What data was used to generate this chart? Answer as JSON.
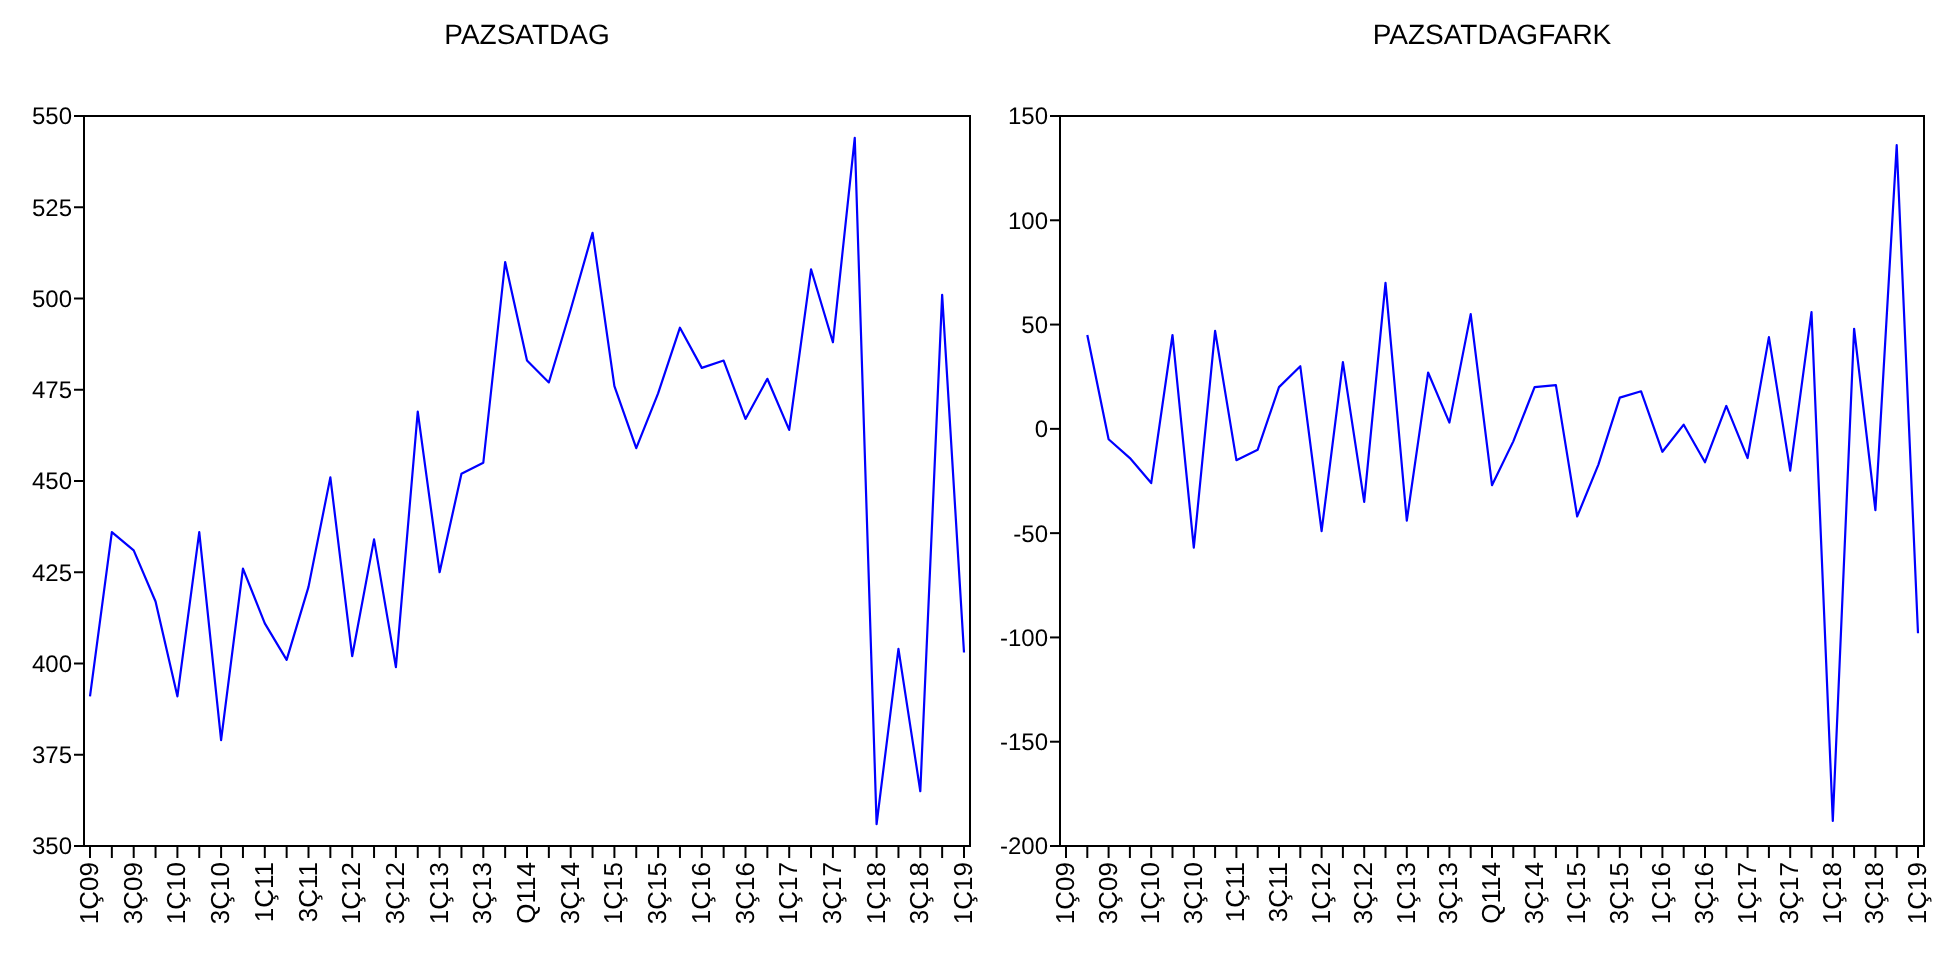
{
  "chart_data": [
    {
      "type": "line",
      "title": "PAZSATDAG",
      "categories": [
        "1Ç09",
        null,
        "3Ç09",
        null,
        "1Ç10",
        null,
        "3Ç10",
        null,
        "1Ç11",
        null,
        "3Ç11",
        null,
        "1Ç12",
        null,
        "3Ç12",
        null,
        "1Ç13",
        null,
        "3Ç13",
        null,
        "Q114",
        null,
        "3Ç14",
        null,
        "1Ç15",
        null,
        "3Ç15",
        null,
        "1Ç16",
        null,
        "3Ç16",
        null,
        "1Ç17",
        null,
        "3Ç17",
        null,
        "1Ç18",
        null,
        "3Ç18",
        null,
        "1Ç19"
      ],
      "series": [
        {
          "color": "#0000ff",
          "values": [
            391,
            436,
            431,
            417,
            391,
            436,
            379,
            426,
            411,
            401,
            421,
            451,
            402,
            434,
            399,
            469,
            425,
            452,
            455,
            510,
            483,
            477,
            497,
            518,
            476,
            459,
            474,
            492,
            481,
            483,
            467,
            478,
            464,
            508,
            488,
            544,
            356,
            404,
            365,
            501,
            403
          ]
        }
      ],
      "ylim": [
        350,
        550
      ],
      "yticks": [
        350,
        375,
        400,
        425,
        450,
        475,
        500,
        525,
        550
      ],
      "grid": false
    },
    {
      "type": "line",
      "title": "PAZSATDAGFARK",
      "categories": [
        "1Ç09",
        null,
        "3Ç09",
        null,
        "1Ç10",
        null,
        "3Ç10",
        null,
        "1Ç11",
        null,
        "3Ç11",
        null,
        "1Ç12",
        null,
        "3Ç12",
        null,
        "1Ç13",
        null,
        "3Ç13",
        null,
        "Q114",
        null,
        "3Ç14",
        null,
        "1Ç15",
        null,
        "3Ç15",
        null,
        "1Ç16",
        null,
        "3Ç16",
        null,
        "1Ç17",
        null,
        "3Ç17",
        null,
        "1Ç18",
        null,
        "3Ç18",
        null,
        "1Ç19"
      ],
      "series": [
        {
          "color": "#0000ff",
          "values": [
            null,
            45,
            -5,
            -14,
            -26,
            45,
            -57,
            47,
            -15,
            -10,
            20,
            30,
            -49,
            32,
            -35,
            70,
            -44,
            27,
            3,
            55,
            -27,
            -6,
            20,
            21,
            -42,
            -17,
            15,
            18,
            -11,
            2,
            -16,
            11,
            -14,
            44,
            -20,
            56,
            -188,
            48,
            -39,
            136,
            -98
          ]
        }
      ],
      "ylim": [
        -200,
        150
      ],
      "yticks": [
        -200,
        -150,
        -100,
        -50,
        0,
        50,
        100,
        150
      ],
      "grid": false
    }
  ]
}
